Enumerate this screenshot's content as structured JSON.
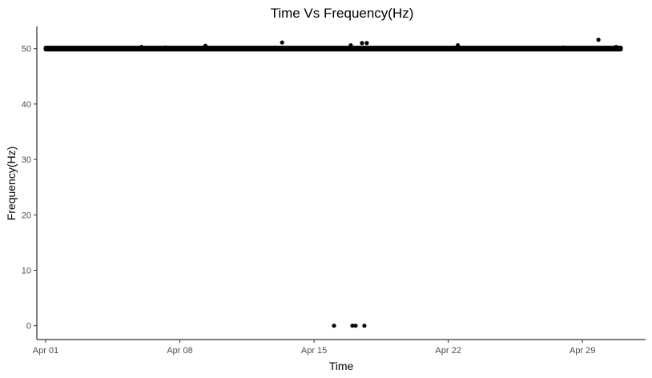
{
  "chart_data": {
    "type": "scatter",
    "title": "Time Vs Frequency(Hz)",
    "xlabel": "Time",
    "ylabel": "Frequency(Hz)",
    "x_ticks": [
      "Apr 01",
      "Apr 08",
      "Apr 15",
      "Apr 22",
      "Apr 29"
    ],
    "y_ticks": [
      0,
      10,
      20,
      30,
      40,
      50
    ],
    "xlim": [
      "Mar 31 13:00",
      "May 02 07:00"
    ],
    "ylim": [
      -2.5,
      54
    ],
    "grid": false,
    "legend": "none",
    "point_color": "#000000",
    "series": [
      {
        "baseline_band": {
          "x_start": "Apr 01 00:00",
          "x_end": "May 01 00:00",
          "y_min": 49.85,
          "y_max": 50.15
        },
        "points": [
          {
            "x": "Apr 02 12:00",
            "y": 50.1
          },
          {
            "x": "Apr 06 00:00",
            "y": 50.3
          },
          {
            "x": "Apr 07 06:00",
            "y": 50.2
          },
          {
            "x": "Apr 09 08:00",
            "y": 50.5
          },
          {
            "x": "Apr 11 12:00",
            "y": 50.1
          },
          {
            "x": "Apr 13 08:00",
            "y": 51.1
          },
          {
            "x": "Apr 16 01:00",
            "y": 0
          },
          {
            "x": "Apr 16 22:00",
            "y": 50.6
          },
          {
            "x": "Apr 17 00:00",
            "y": 0
          },
          {
            "x": "Apr 17 04:00",
            "y": 0
          },
          {
            "x": "Apr 17 12:00",
            "y": 51.0
          },
          {
            "x": "Apr 17 15:00",
            "y": 0
          },
          {
            "x": "Apr 17 18:00",
            "y": 51.0
          },
          {
            "x": "Apr 20 00:00",
            "y": 50.1
          },
          {
            "x": "Apr 22 12:00",
            "y": 50.6
          },
          {
            "x": "Apr 25 00:00",
            "y": 50.1
          },
          {
            "x": "Apr 28 00:00",
            "y": 50.2
          },
          {
            "x": "Apr 29 20:00",
            "y": 51.6
          },
          {
            "x": "Apr 30 18:00",
            "y": 50.3
          }
        ]
      }
    ]
  }
}
